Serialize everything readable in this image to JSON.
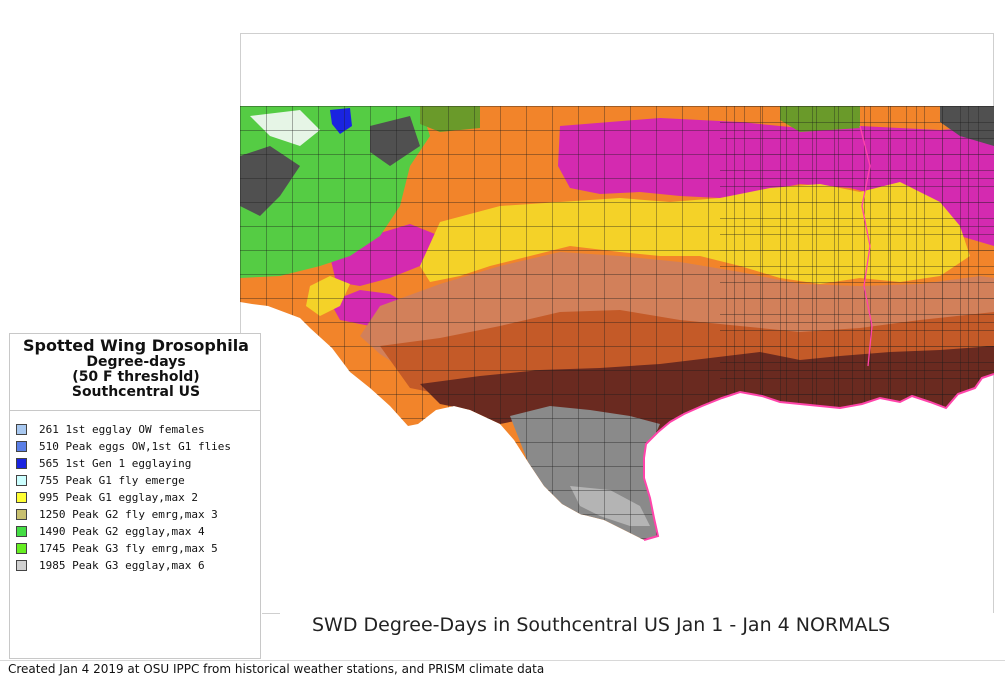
{
  "legend": {
    "title": "Spotted Wing Drosophila",
    "subtitle1": "Degree-days",
    "subtitle2": "(50 F threshold)",
    "subtitle3": "Southcentral US",
    "items": [
      {
        "label": "261 1st egglay OW females",
        "color": "#a8c8f0"
      },
      {
        "label": "510 Peak eggs OW,1st G1 flies",
        "color": "#5b7fe6"
      },
      {
        "label": "565 1st Gen 1 egglaying",
        "color": "#1a24e0"
      },
      {
        "label": "755 Peak G1 fly emerge",
        "color": "#ccffff"
      },
      {
        "label": "995 Peak G1 egglay,max 2",
        "color": "#ffff33"
      },
      {
        "label": "1250 Peak G2 fly emrg,max 3",
        "color": "#c8c070"
      },
      {
        "label": "1490 Peak G2 egglay,max 4",
        "color": "#44dd44"
      },
      {
        "label": "1745 Peak G3 fly emrg,max 5",
        "color": "#66ee22"
      },
      {
        "label": "1985 Peak G3 egglay,max 6",
        "color": "#d0d0d0"
      }
    ]
  },
  "map": {
    "title": "SWD Degree-Days in Southcentral US Jan 1 - Jan 4 NORMALS",
    "zone_colors": {
      "mountains_green": "#55cc44",
      "mountains_dark": "#505050",
      "olive": "#6a9a2a",
      "orange": "#f2842a",
      "magenta": "#d42ab0",
      "yellow": "#f4d228",
      "light_brown": "#d2805a",
      "rust": "#c45a28",
      "dark_brown": "#6a2a20",
      "gray": "#8a8a8a",
      "coast": "#ff44aa"
    }
  },
  "footer": "Created Jan 4 2019 at OSU IPPC from  historical weather stations, and PRISM climate data"
}
